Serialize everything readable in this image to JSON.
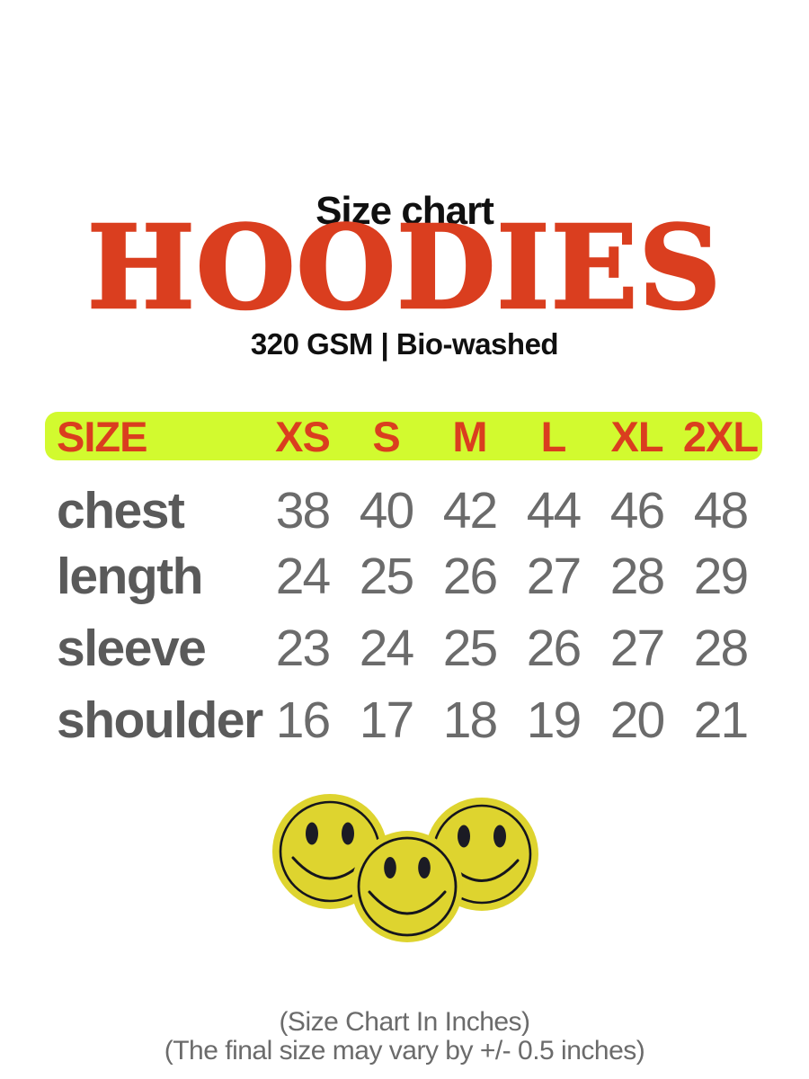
{
  "header": {
    "kicker": "Size chart",
    "title": "HOODIES",
    "subtitle": "320 GSM | Bio-washed"
  },
  "table": {
    "header": {
      "label": "SIZE",
      "sizes": [
        "XS",
        "S",
        "M",
        "L",
        "XL",
        "2XL"
      ]
    },
    "rows": [
      {
        "label": "chest",
        "values": [
          "38",
          "40",
          "42",
          "44",
          "46",
          "48"
        ]
      },
      {
        "label": "length",
        "values": [
          "24",
          "25",
          "26",
          "27",
          "28",
          "29"
        ]
      },
      {
        "label": "sleeve",
        "values": [
          "23",
          "24",
          "25",
          "26",
          "27",
          "28"
        ]
      },
      {
        "label": "shoulder",
        "values": [
          "16",
          "17",
          "18",
          "19",
          "20",
          "21"
        ]
      }
    ]
  },
  "graphic": {
    "icon": "smiley-faces-icon",
    "count": 3
  },
  "footer": {
    "line1": "(Size Chart In Inches)",
    "line2": "(The final size may vary by +/- 0.5 inches)"
  },
  "colors": {
    "accent_red": "#DA3E1F",
    "highlight_green": "#D2FA2F",
    "smiley_yellow": "#DED42F",
    "ink_black": "#101010",
    "label_gray": "#5A5A5A",
    "value_gray": "#6B6B6B",
    "caption_gray": "#6B6B6B"
  },
  "chart_data": {
    "type": "table",
    "title": "Size chart — HOODIES",
    "subtitle": "320 GSM | Bio-washed",
    "unit": "inches",
    "tolerance_note": "final size may vary by +/- 0.5 inches",
    "columns": [
      "SIZE",
      "XS",
      "S",
      "M",
      "L",
      "XL",
      "2XL"
    ],
    "rows": [
      [
        "chest",
        38,
        40,
        42,
        44,
        46,
        48
      ],
      [
        "length",
        24,
        25,
        26,
        27,
        28,
        29
      ],
      [
        "sleeve",
        23,
        24,
        25,
        26,
        27,
        28
      ],
      [
        "shoulder",
        16,
        17,
        18,
        19,
        20,
        21
      ]
    ]
  }
}
